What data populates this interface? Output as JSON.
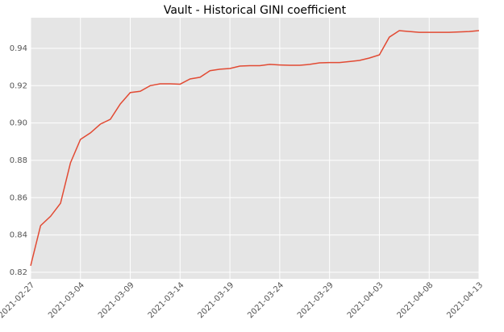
{
  "chart_data": {
    "type": "line",
    "title": "Vault - Historical GINI coefficient",
    "x": [
      "2021-02-27",
      "2021-02-28",
      "2021-03-01",
      "2021-03-02",
      "2021-03-03",
      "2021-03-04",
      "2021-03-05",
      "2021-03-06",
      "2021-03-07",
      "2021-03-08",
      "2021-03-09",
      "2021-03-10",
      "2021-03-11",
      "2021-03-12",
      "2021-03-13",
      "2021-03-14",
      "2021-03-15",
      "2021-03-16",
      "2021-03-17",
      "2021-03-18",
      "2021-03-19",
      "2021-03-20",
      "2021-03-21",
      "2021-03-22",
      "2021-03-23",
      "2021-03-24",
      "2021-03-25",
      "2021-03-26",
      "2021-03-27",
      "2021-03-28",
      "2021-03-29",
      "2021-03-30",
      "2021-03-31",
      "2021-04-01",
      "2021-04-02",
      "2021-04-03",
      "2021-04-04",
      "2021-04-05",
      "2021-04-06",
      "2021-04-07",
      "2021-04-08",
      "2021-04-09",
      "2021-04-10",
      "2021-04-11",
      "2021-04-12",
      "2021-04-13"
    ],
    "series": [
      {
        "name": "GINI",
        "color": "#e24a33",
        "values": [
          0.8235,
          0.845,
          0.85,
          0.857,
          0.8787,
          0.8912,
          0.8947,
          0.8994,
          0.902,
          0.9102,
          0.9163,
          0.917,
          0.92,
          0.921,
          0.921,
          0.9208,
          0.9236,
          0.9245,
          0.928,
          0.9288,
          0.9292,
          0.9305,
          0.9307,
          0.9307,
          0.9314,
          0.9311,
          0.9309,
          0.9309,
          0.9314,
          0.9322,
          0.9324,
          0.9324,
          0.9329,
          0.9335,
          0.9348,
          0.9365,
          0.946,
          0.9495,
          0.949,
          0.9486,
          0.9486,
          0.9486,
          0.9486,
          0.9488,
          0.949,
          0.9495
        ]
      }
    ],
    "xlim": [
      "2021-02-27",
      "2021-04-13"
    ],
    "xticks": [
      "2021-02-27",
      "2021-03-04",
      "2021-03-09",
      "2021-03-14",
      "2021-03-19",
      "2021-03-24",
      "2021-03-29",
      "2021-04-03",
      "2021-04-08",
      "2021-04-13"
    ],
    "ylim": [
      0.8165,
      0.9564
    ],
    "yticks": [
      0.82,
      0.84,
      0.86,
      0.88,
      {
        "value": 0.9,
        "label": "0.90"
      },
      0.92,
      0.94
    ],
    "grid": true
  }
}
